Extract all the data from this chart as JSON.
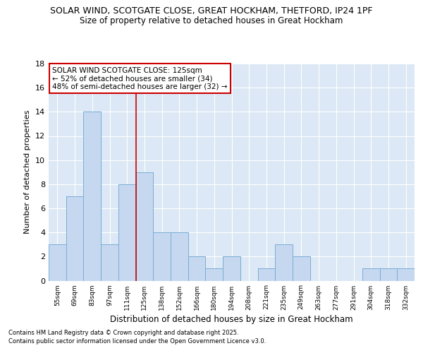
{
  "title1": "SOLAR WIND, SCOTGATE CLOSE, GREAT HOCKHAM, THETFORD, IP24 1PF",
  "title2": "Size of property relative to detached houses in Great Hockham",
  "xlabel": "Distribution of detached houses by size in Great Hockham",
  "ylabel": "Number of detached properties",
  "categories": [
    "55sqm",
    "69sqm",
    "83sqm",
    "97sqm",
    "111sqm",
    "125sqm",
    "138sqm",
    "152sqm",
    "166sqm",
    "180sqm",
    "194sqm",
    "208sqm",
    "221sqm",
    "235sqm",
    "249sqm",
    "263sqm",
    "277sqm",
    "291sqm",
    "304sqm",
    "318sqm",
    "332sqm"
  ],
  "values": [
    3,
    7,
    14,
    3,
    8,
    9,
    4,
    4,
    2,
    1,
    2,
    0,
    1,
    3,
    2,
    0,
    0,
    0,
    1,
    1,
    1
  ],
  "bar_color": "#c5d8f0",
  "bar_edge_color": "#7aadd4",
  "highlight_bar_index": 5,
  "annotation_title": "SOLAR WIND SCOTGATE CLOSE: 125sqm",
  "annotation_line1": "← 52% of detached houses are smaller (34)",
  "annotation_line2": "48% of semi-detached houses are larger (32) →",
  "annotation_box_color": "#ffffff",
  "annotation_box_edge": "#cc0000",
  "highlight_line_color": "#cc0000",
  "ylim": [
    0,
    18
  ],
  "yticks": [
    0,
    2,
    4,
    6,
    8,
    10,
    12,
    14,
    16,
    18
  ],
  "background_color": "#dce8f5",
  "footer1": "Contains HM Land Registry data © Crown copyright and database right 2025.",
  "footer2": "Contains public sector information licensed under the Open Government Licence v3.0."
}
